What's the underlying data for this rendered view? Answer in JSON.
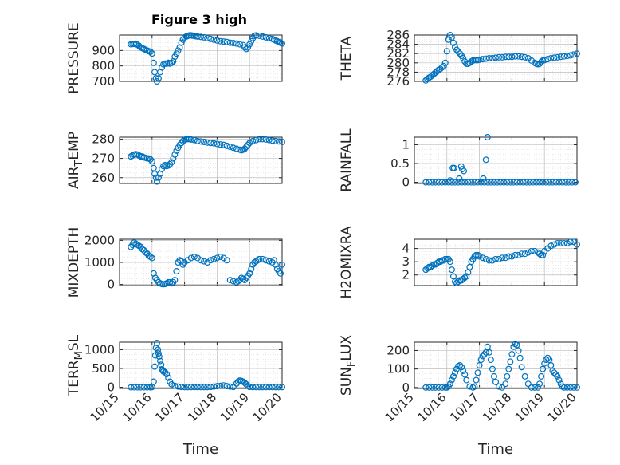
{
  "figure_title": "Figure 3 high",
  "colors": {
    "marker": "#0072BD",
    "axis": "#262626",
    "grid": "#bdbdbd"
  },
  "chart_data": [
    {
      "id": "pressure",
      "type": "scatter",
      "marker": "circle",
      "ylabel": "PRESSURE",
      "ylim": [
        700,
        1000
      ],
      "yticks": [
        700,
        800,
        900
      ],
      "ytick_labels": [
        "700",
        "800",
        "900"
      ],
      "xlim": [
        15,
        20
      ],
      "xticks": [
        15,
        16,
        17,
        18,
        19,
        20
      ],
      "xtick_labels": [],
      "x": [
        15.35,
        15.4,
        15.45,
        15.5,
        15.55,
        15.6,
        15.65,
        15.7,
        15.75,
        15.8,
        15.85,
        15.9,
        15.95,
        16.0,
        16.05,
        16.08,
        16.12,
        16.15,
        16.2,
        16.25,
        16.3,
        16.35,
        16.4,
        16.45,
        16.5,
        16.55,
        16.6,
        16.65,
        16.7,
        16.75,
        16.8,
        16.85,
        16.9,
        16.95,
        17.0,
        17.05,
        17.1,
        17.15,
        17.2,
        17.25,
        17.3,
        17.35,
        17.4,
        17.5,
        17.6,
        17.7,
        17.8,
        17.9,
        18.0,
        18.1,
        18.2,
        18.3,
        18.4,
        18.5,
        18.6,
        18.7,
        18.8,
        18.85,
        18.9,
        18.95,
        19.0,
        19.05,
        19.1,
        19.15,
        19.2,
        19.3,
        19.4,
        19.5,
        19.6,
        19.7,
        19.75,
        19.8,
        19.85,
        19.9,
        19.95,
        20.0
      ],
      "y": [
        940,
        942,
        943,
        941,
        938,
        930,
        920,
        915,
        910,
        905,
        900,
        895,
        892,
        880,
        820,
        760,
        720,
        700,
        720,
        760,
        790,
        810,
        815,
        815,
        820,
        815,
        820,
        830,
        860,
        880,
        900,
        920,
        950,
        970,
        985,
        990,
        995,
        998,
        998,
        996,
        995,
        992,
        990,
        988,
        985,
        980,
        975,
        970,
        965,
        960,
        958,
        955,
        950,
        948,
        945,
        940,
        935,
        920,
        910,
        920,
        940,
        960,
        980,
        995,
        998,
        995,
        990,
        985,
        980,
        975,
        970,
        965,
        960,
        955,
        950,
        945
      ]
    },
    {
      "id": "theta",
      "type": "scatter",
      "marker": "circle",
      "ylabel": "THETA",
      "ylim": [
        276,
        286
      ],
      "yticks": [
        276,
        278,
        280,
        282,
        284,
        286
      ],
      "ytick_labels": [
        "276",
        "278",
        "280",
        "282",
        "284",
        "286"
      ],
      "xlim": [
        15,
        20
      ],
      "xticks": [
        15,
        16,
        17,
        18,
        19,
        20
      ],
      "xtick_labels": [],
      "x": [
        15.35,
        15.4,
        15.45,
        15.5,
        15.55,
        15.6,
        15.65,
        15.7,
        15.75,
        15.8,
        15.85,
        15.9,
        15.95,
        16.0,
        16.05,
        16.1,
        16.15,
        16.2,
        16.25,
        16.3,
        16.35,
        16.4,
        16.45,
        16.5,
        16.55,
        16.6,
        16.65,
        16.7,
        16.75,
        16.8,
        16.85,
        16.9,
        16.95,
        17.0,
        17.1,
        17.2,
        17.3,
        17.4,
        17.5,
        17.6,
        17.7,
        17.8,
        17.9,
        18.0,
        18.1,
        18.2,
        18.3,
        18.4,
        18.5,
        18.6,
        18.7,
        18.75,
        18.8,
        18.85,
        18.9,
        18.95,
        19.0,
        19.1,
        19.2,
        19.3,
        19.4,
        19.5,
        19.6,
        19.7,
        19.8,
        19.9,
        20.0
      ],
      "y": [
        276.2,
        276.5,
        276.8,
        277.0,
        277.3,
        277.6,
        277.9,
        278.2,
        278.5,
        278.7,
        279.0,
        279.3,
        280.0,
        282.5,
        285.0,
        286.0,
        285.5,
        284.3,
        283.4,
        282.8,
        282.4,
        282.0,
        281.5,
        281.0,
        280.3,
        279.8,
        279.8,
        280.0,
        280.3,
        280.5,
        280.6,
        280.6,
        280.6,
        280.7,
        280.8,
        280.9,
        281.0,
        281.0,
        281.1,
        281.2,
        281.2,
        281.3,
        281.3,
        281.3,
        281.4,
        281.4,
        281.3,
        281.2,
        281.0,
        280.5,
        280.0,
        279.8,
        279.7,
        279.8,
        280.2,
        280.5,
        280.6,
        280.8,
        281.0,
        281.1,
        281.2,
        281.3,
        281.4,
        281.5,
        281.6,
        281.8,
        282.0
      ]
    },
    {
      "id": "air_temp",
      "type": "scatter",
      "marker": "circle",
      "ylabel": "AIR_TEMP",
      "ylabel_main": "AIR",
      "ylabel_sub": "T",
      "ylabel_rest": "EMP",
      "ylim": [
        257,
        281
      ],
      "yticks": [
        260,
        270,
        280
      ],
      "ytick_labels": [
        "260",
        "270",
        "280"
      ],
      "xlim": [
        15,
        20
      ],
      "xticks": [
        15,
        16,
        17,
        18,
        19,
        20
      ],
      "xtick_labels": [],
      "x": [
        15.35,
        15.4,
        15.45,
        15.5,
        15.55,
        15.6,
        15.65,
        15.7,
        15.75,
        15.8,
        15.85,
        15.9,
        15.95,
        16.0,
        16.05,
        16.08,
        16.12,
        16.15,
        16.2,
        16.25,
        16.3,
        16.35,
        16.4,
        16.45,
        16.5,
        16.55,
        16.6,
        16.65,
        16.7,
        16.75,
        16.8,
        16.85,
        16.9,
        16.95,
        17.0,
        17.05,
        17.1,
        17.15,
        17.2,
        17.3,
        17.4,
        17.5,
        17.6,
        17.7,
        17.8,
        17.9,
        18.0,
        18.1,
        18.2,
        18.3,
        18.4,
        18.5,
        18.6,
        18.7,
        18.75,
        18.8,
        18.85,
        18.9,
        18.95,
        19.0,
        19.1,
        19.2,
        19.3,
        19.4,
        19.5,
        19.6,
        19.7,
        19.8,
        19.9,
        20.0
      ],
      "y": [
        271,
        271.5,
        272,
        272.2,
        272,
        271.5,
        271,
        271,
        270.5,
        270.3,
        270,
        270,
        269.5,
        268.5,
        265,
        262,
        260,
        258,
        260,
        262,
        264.5,
        266,
        266.5,
        266,
        266.3,
        267,
        268,
        270,
        272,
        274,
        275.5,
        277,
        278,
        279,
        279.5,
        280,
        280,
        280,
        279.8,
        279.5,
        279,
        278.8,
        278.5,
        278.2,
        278,
        277.8,
        277.5,
        277.2,
        277,
        276.5,
        276,
        275.5,
        275,
        274.5,
        274.2,
        274.5,
        275,
        276,
        277,
        278,
        279,
        279.5,
        280,
        280,
        279.8,
        279.5,
        279.2,
        279,
        278.8,
        278.5
      ]
    },
    {
      "id": "rainfall",
      "type": "scatter",
      "marker": "circle",
      "ylabel": "RAINFALL",
      "ylim": [
        -0.03,
        1.2
      ],
      "yticks": [
        0,
        0.5,
        1
      ],
      "ytick_labels": [
        "0",
        "0.5",
        "1"
      ],
      "xlim": [
        15,
        20
      ],
      "xticks": [
        15,
        16,
        17,
        18,
        19,
        20
      ],
      "xtick_labels": [],
      "x": [
        15.35,
        15.45,
        15.55,
        15.65,
        15.75,
        15.85,
        15.95,
        16.05,
        16.15,
        16.25,
        16.35,
        16.45,
        16.55,
        16.65,
        16.75,
        16.85,
        16.95,
        17.05,
        17.15,
        17.25,
        17.35,
        17.45,
        17.55,
        17.65,
        17.75,
        17.85,
        17.95,
        18.05,
        18.15,
        18.25,
        18.35,
        18.45,
        18.55,
        18.65,
        18.75,
        18.85,
        18.95,
        19.05,
        19.15,
        19.25,
        19.35,
        19.45,
        19.55,
        19.65,
        19.75,
        19.85,
        19.95,
        16.1,
        16.18,
        16.22,
        16.38,
        16.44,
        16.47,
        16.52,
        17.12,
        17.2,
        17.25
      ],
      "y": [
        0,
        0,
        0,
        0,
        0,
        0,
        0,
        0,
        0,
        0,
        0,
        0,
        0,
        0,
        0,
        0,
        0,
        0,
        0,
        0,
        0,
        0,
        0,
        0,
        0,
        0,
        0,
        0,
        0,
        0,
        0,
        0,
        0,
        0,
        0,
        0,
        0,
        0,
        0,
        0,
        0,
        0,
        0,
        0,
        0,
        0,
        0,
        0.05,
        0.38,
        0.38,
        0.1,
        0.42,
        0.35,
        0.3,
        0.1,
        0.6,
        1.2
      ]
    },
    {
      "id": "mixdepth",
      "type": "scatter",
      "marker": "circle",
      "ylabel": "MIXDEPTH",
      "ylim": [
        -50,
        2050
      ],
      "yticks": [
        0,
        1000,
        2000
      ],
      "ytick_labels": [
        "0",
        "1000",
        "2000"
      ],
      "xlim": [
        15,
        20
      ],
      "xticks": [
        15,
        16,
        17,
        18,
        19,
        20
      ],
      "xtick_labels": [],
      "x": [
        15.35,
        15.4,
        15.45,
        15.5,
        15.55,
        15.6,
        15.65,
        15.7,
        15.75,
        15.8,
        15.85,
        15.9,
        15.95,
        16.0,
        16.05,
        16.1,
        16.15,
        16.2,
        16.25,
        16.3,
        16.35,
        16.4,
        16.45,
        16.5,
        16.55,
        16.6,
        16.65,
        16.7,
        16.75,
        16.8,
        16.85,
        16.9,
        16.95,
        17.0,
        17.1,
        17.2,
        17.3,
        17.4,
        17.5,
        17.6,
        17.7,
        17.8,
        17.9,
        18.0,
        18.1,
        18.2,
        18.3,
        18.4,
        18.5,
        18.6,
        18.65,
        18.7,
        18.75,
        18.8,
        18.85,
        18.9,
        18.95,
        19.0,
        19.05,
        19.1,
        19.15,
        19.2,
        19.25,
        19.3,
        19.4,
        19.5,
        19.6,
        19.7,
        19.75,
        19.8,
        19.85,
        19.9,
        19.95,
        20.0
      ],
      "y": [
        1700,
        1800,
        1900,
        1850,
        1800,
        1750,
        1700,
        1600,
        1550,
        1450,
        1400,
        1300,
        1250,
        1200,
        500,
        300,
        200,
        100,
        50,
        20,
        10,
        20,
        50,
        100,
        100,
        50,
        100,
        200,
        600,
        1000,
        1100,
        1050,
        900,
        1000,
        1100,
        1200,
        1250,
        1200,
        1100,
        1050,
        1000,
        1100,
        1150,
        1200,
        1250,
        1200,
        1100,
        200,
        150,
        100,
        150,
        200,
        300,
        250,
        200,
        300,
        400,
        500,
        700,
        900,
        1000,
        1050,
        1100,
        1150,
        1150,
        1100,
        1050,
        1000,
        1100,
        900,
        700,
        600,
        500,
        900
      ]
    },
    {
      "id": "h2omixra",
      "type": "scatter",
      "marker": "circle",
      "ylabel": "H2OMIXRA",
      "ylim": [
        1.2,
        4.7
      ],
      "yticks": [
        2,
        3,
        4
      ],
      "ytick_labels": [
        "2",
        "3",
        "4"
      ],
      "xlim": [
        15,
        20
      ],
      "xticks": [
        15,
        16,
        17,
        18,
        19,
        20
      ],
      "xtick_labels": [],
      "x": [
        15.35,
        15.4,
        15.45,
        15.5,
        15.55,
        15.6,
        15.65,
        15.7,
        15.75,
        15.8,
        15.85,
        15.9,
        15.95,
        16.0,
        16.05,
        16.1,
        16.15,
        16.2,
        16.25,
        16.3,
        16.35,
        16.4,
        16.45,
        16.5,
        16.55,
        16.6,
        16.65,
        16.7,
        16.75,
        16.8,
        16.85,
        16.9,
        16.95,
        17.0,
        17.1,
        17.2,
        17.3,
        17.4,
        17.5,
        17.6,
        17.7,
        17.8,
        17.9,
        18.0,
        18.1,
        18.2,
        18.3,
        18.4,
        18.5,
        18.6,
        18.7,
        18.8,
        18.85,
        18.9,
        18.95,
        19.0,
        19.1,
        19.2,
        19.3,
        19.4,
        19.5,
        19.6,
        19.7,
        19.8,
        19.9,
        20.0
      ],
      "y": [
        2.4,
        2.5,
        2.6,
        2.6,
        2.7,
        2.8,
        2.8,
        2.9,
        3.0,
        3.0,
        3.1,
        3.1,
        3.2,
        3.2,
        3.2,
        3.0,
        2.4,
        1.9,
        1.5,
        1.4,
        1.5,
        1.6,
        1.6,
        1.7,
        1.8,
        1.9,
        2.2,
        2.6,
        3.0,
        3.2,
        3.4,
        3.5,
        3.5,
        3.4,
        3.3,
        3.2,
        3.1,
        3.1,
        3.2,
        3.2,
        3.3,
        3.3,
        3.4,
        3.4,
        3.5,
        3.5,
        3.6,
        3.6,
        3.7,
        3.8,
        3.8,
        3.7,
        3.6,
        3.5,
        3.5,
        3.8,
        4.0,
        4.2,
        4.3,
        4.4,
        4.4,
        4.4,
        4.4,
        4.5,
        4.5,
        4.3
      ]
    },
    {
      "id": "terr_msl",
      "type": "scatter",
      "marker": "circle",
      "ylabel": "TERR_MSL",
      "ylabel_main": "TERR",
      "ylabel_sub": "M",
      "ylabel_rest": "SL",
      "ylim": [
        -30,
        1200
      ],
      "yticks": [
        0,
        500,
        1000
      ],
      "ytick_labels": [
        "0",
        "500",
        "1000"
      ],
      "xlim": [
        15,
        20
      ],
      "xticks": [
        15,
        16,
        17,
        18,
        19,
        20
      ],
      "xtick_labels": [
        "10/15",
        "10/16",
        "10/17",
        "10/18",
        "10/19",
        "10/20"
      ],
      "xlabel": "Time",
      "x": [
        15.35,
        15.45,
        15.55,
        15.65,
        15.75,
        15.85,
        15.95,
        16.0,
        16.05,
        16.08,
        16.1,
        16.12,
        16.15,
        16.18,
        16.2,
        16.22,
        16.25,
        16.28,
        16.3,
        16.33,
        16.35,
        16.4,
        16.45,
        16.5,
        16.55,
        16.6,
        16.7,
        16.8,
        16.9,
        17.0,
        17.1,
        17.2,
        17.3,
        17.4,
        17.5,
        17.6,
        17.7,
        17.8,
        17.9,
        18.0,
        18.1,
        18.2,
        18.3,
        18.4,
        18.5,
        18.6,
        18.65,
        18.7,
        18.75,
        18.8,
        18.85,
        18.9,
        18.95,
        19.0,
        19.1,
        19.2,
        19.3,
        19.4,
        19.5,
        19.6,
        19.7,
        19.8,
        19.9,
        20.0
      ],
      "y": [
        0,
        0,
        0,
        0,
        0,
        0,
        0,
        5,
        150,
        550,
        850,
        1050,
        1180,
        1000,
        900,
        820,
        700,
        600,
        480,
        450,
        420,
        400,
        350,
        250,
        150,
        80,
        40,
        20,
        10,
        5,
        5,
        5,
        5,
        5,
        5,
        5,
        5,
        10,
        20,
        30,
        40,
        50,
        30,
        20,
        10,
        100,
        150,
        180,
        170,
        150,
        120,
        80,
        40,
        10,
        5,
        5,
        5,
        5,
        5,
        5,
        5,
        5,
        5,
        5
      ]
    },
    {
      "id": "sun_flux",
      "type": "scatter",
      "marker": "circle",
      "ylabel": "SUN_FLUX",
      "ylabel_main": "SUN",
      "ylabel_sub": "F",
      "ylabel_rest": "LUX",
      "ylim": [
        -5,
        245
      ],
      "yticks": [
        0,
        100,
        200
      ],
      "ytick_labels": [
        "0",
        "100",
        "200"
      ],
      "xlim": [
        15,
        20
      ],
      "xticks": [
        15,
        16,
        17,
        18,
        19,
        20
      ],
      "xtick_labels": [
        "10/15",
        "10/16",
        "10/17",
        "10/18",
        "10/19",
        "10/20"
      ],
      "xlabel": "Time",
      "x": [
        15.35,
        15.45,
        15.55,
        15.65,
        15.75,
        15.85,
        15.95,
        16.0,
        16.05,
        16.1,
        16.15,
        16.2,
        16.25,
        16.3,
        16.35,
        16.4,
        16.45,
        16.5,
        16.55,
        16.6,
        16.7,
        16.8,
        16.85,
        16.9,
        16.95,
        17.0,
        17.05,
        17.1,
        17.15,
        17.2,
        17.25,
        17.3,
        17.35,
        17.4,
        17.45,
        17.5,
        17.6,
        17.7,
        17.8,
        17.85,
        17.9,
        17.95,
        18.0,
        18.05,
        18.1,
        18.15,
        18.2,
        18.25,
        18.3,
        18.4,
        18.5,
        18.6,
        18.7,
        18.8,
        18.85,
        18.9,
        18.95,
        19.0,
        19.05,
        19.1,
        19.15,
        19.2,
        19.25,
        19.3,
        19.35,
        19.4,
        19.45,
        19.5,
        19.55,
        19.6,
        19.7,
        19.8,
        19.9,
        20.0
      ],
      "y": [
        0,
        0,
        0,
        0,
        0,
        0,
        0,
        0,
        5,
        20,
        40,
        60,
        80,
        100,
        115,
        120,
        110,
        90,
        70,
        40,
        5,
        0,
        5,
        40,
        80,
        120,
        150,
        170,
        180,
        190,
        220,
        190,
        150,
        100,
        60,
        30,
        5,
        0,
        20,
        60,
        100,
        140,
        180,
        220,
        235,
        230,
        200,
        160,
        110,
        60,
        20,
        0,
        0,
        0,
        20,
        60,
        100,
        130,
        150,
        160,
        150,
        120,
        90,
        80,
        70,
        60,
        40,
        20,
        5,
        0,
        0,
        0,
        0,
        0
      ]
    }
  ]
}
